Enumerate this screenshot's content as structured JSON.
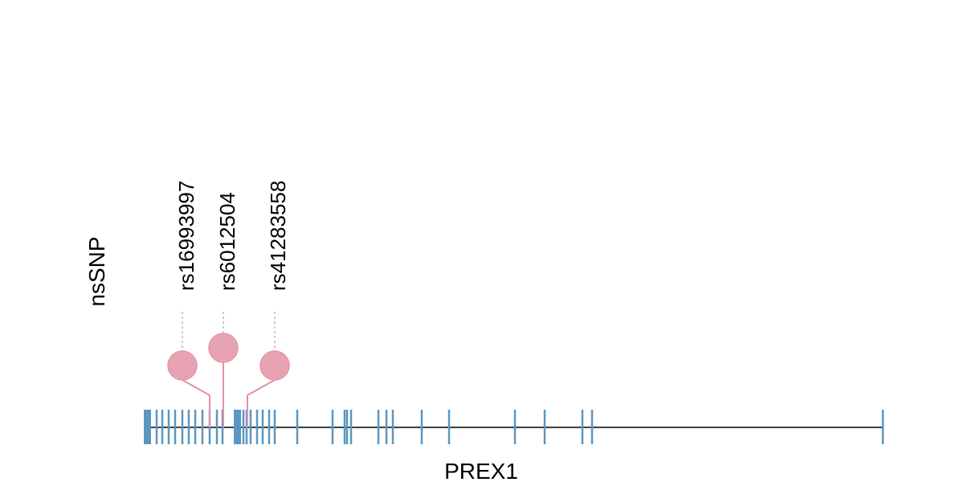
{
  "track_label": "nsSNP",
  "gene": "PREX1",
  "snps": [
    {
      "label": "rs16993997"
    },
    {
      "label": "rs6012504"
    },
    {
      "label": "rs41283558"
    }
  ]
}
